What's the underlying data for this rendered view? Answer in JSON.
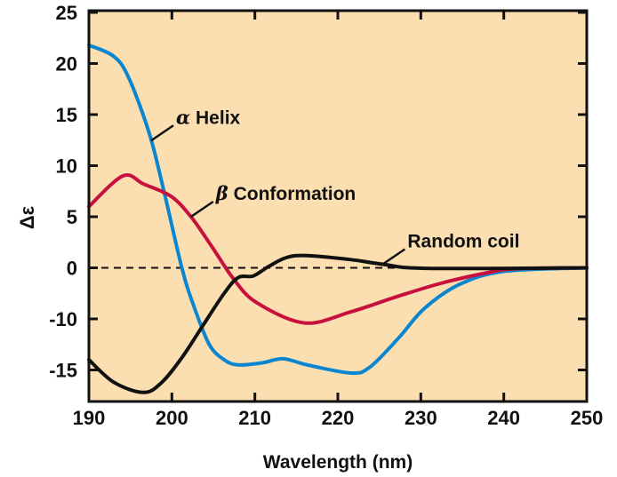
{
  "chart_data": {
    "type": "line",
    "title": "",
    "xlabel": "Wavelength (nm)",
    "ylabel": "Δε",
    "xlim": [
      190,
      250
    ],
    "xticks": [
      190,
      200,
      210,
      220,
      230,
      240,
      250
    ],
    "yticks": [
      "25",
      "20",
      "15",
      "10",
      "5",
      "0",
      "-10",
      "-15"
    ],
    "ytick_values": [
      25,
      20,
      15,
      10,
      5,
      0,
      -10,
      -15
    ],
    "ylim_bottom": -18,
    "background": "#fbdfb1",
    "reference_line": {
      "y": 0,
      "style": "dashed"
    },
    "grid": false,
    "series": [
      {
        "name": "α Helix",
        "color": "#0a86d0",
        "x": [
          190,
          193,
          194.8,
          197.3,
          199.1,
          201.2,
          202.6,
          204.5,
          206.3,
          208,
          210.9,
          213.4,
          216.3,
          221.6,
          223.9,
          227.4,
          230.4,
          234.6,
          240,
          250
        ],
        "y": [
          21.8,
          20.7,
          18.6,
          13.1,
          7.3,
          0,
          -7.3,
          -12.5,
          -14.0,
          -14.5,
          -14.3,
          -13.9,
          -14.5,
          -15.3,
          -14.7,
          -11.8,
          -8.0,
          -3.3,
          -0.7,
          0
        ]
      },
      {
        "name": "β Conformation",
        "color": "#c8103e",
        "x": [
          190,
          194.1,
          196.6,
          199.9,
          202.3,
          204.8,
          207.4,
          210.2,
          216,
          221.6,
          227.2,
          232.5,
          237.9,
          241.4,
          250
        ],
        "y": [
          6,
          9,
          8.2,
          7,
          5,
          2.1,
          -2.1,
          -6.8,
          -10.4,
          -8.6,
          -5.6,
          -3.0,
          -1.0,
          -0.2,
          0
        ]
      },
      {
        "name": "Random coil",
        "color": "#111111",
        "x": [
          190,
          193,
          196.6,
          198.8,
          201.2,
          203.7,
          206.3,
          208,
          209.8,
          211.6,
          213.8,
          216.3,
          221.6,
          225.4,
          230.7,
          250
        ],
        "y": [
          -14,
          -16.2,
          -17.2,
          -16.2,
          -13.8,
          -10.7,
          -5,
          -1.9,
          -1.6,
          0.1,
          1.0,
          1.2,
          0.8,
          0.35,
          -0.1,
          0
        ]
      }
    ],
    "annotations": [
      {
        "series": 0,
        "greek": "α",
        "text": "Helix",
        "at_x": 197.5
      },
      {
        "series": 1,
        "greek": "β",
        "text": "Conformation",
        "at_x": 202.3
      },
      {
        "series": 2,
        "greek": "",
        "text": "Random coil",
        "at_x": 225.4
      }
    ]
  }
}
